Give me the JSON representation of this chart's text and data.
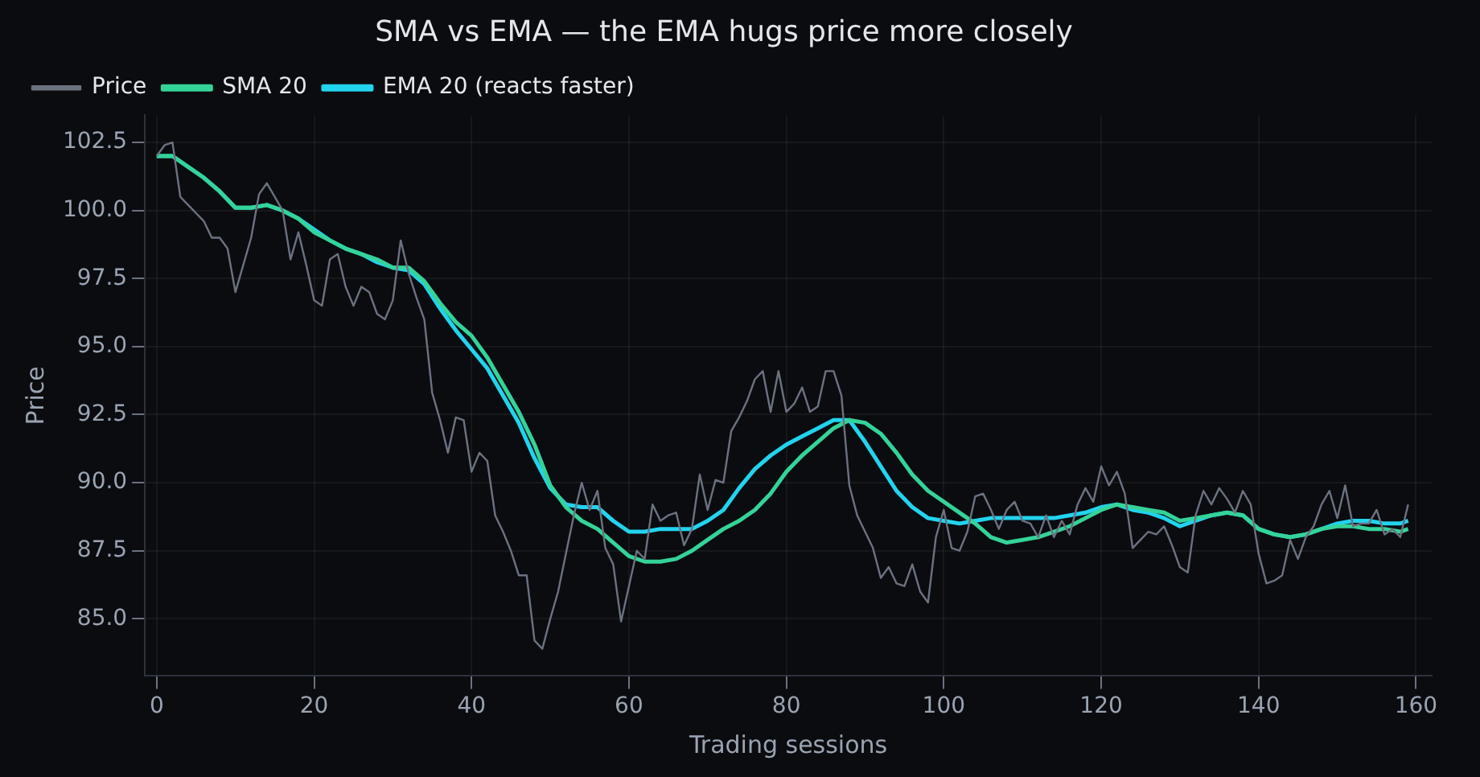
{
  "chart_data": {
    "type": "line",
    "title": "SMA vs EMA — the EMA hugs price more closely",
    "xlabel": "Trading sessions",
    "ylabel": "Price",
    "xlim": [
      -1.5,
      162
    ],
    "ylim": [
      82.9,
      103.5
    ],
    "xticks": [
      0,
      20,
      40,
      60,
      80,
      100,
      120,
      140,
      160
    ],
    "yticks": [
      {
        "value": 85,
        "label": "85.0"
      },
      {
        "value": 87.5,
        "label": "87.5"
      },
      {
        "value": 90,
        "label": "90.0"
      },
      {
        "value": 92.5,
        "label": "92.5"
      },
      {
        "value": 95,
        "label": "95.0"
      },
      {
        "value": 97.5,
        "label": "97.5"
      },
      {
        "value": 100,
        "label": "100.0"
      },
      {
        "value": 102.5,
        "label": "102.5"
      }
    ],
    "grid": true,
    "legend": "top left",
    "marker": "none",
    "series": [
      {
        "name": "Price",
        "color": "#6b7280",
        "x": [
          0,
          1,
          2,
          3,
          4,
          5,
          6,
          7,
          8,
          9,
          10,
          11,
          12,
          13,
          14,
          15,
          16,
          17,
          18,
          19,
          20,
          21,
          22,
          23,
          24,
          25,
          26,
          27,
          28,
          29,
          30,
          31,
          32,
          33,
          34,
          35,
          36,
          37,
          38,
          39,
          40,
          41,
          42,
          43,
          44,
          45,
          46,
          47,
          48,
          49,
          50,
          51,
          52,
          53,
          54,
          55,
          56,
          57,
          58,
          59,
          60,
          61,
          62,
          63,
          64,
          65,
          66,
          67,
          68,
          69,
          70,
          71,
          72,
          73,
          74,
          75,
          76,
          77,
          78,
          79,
          80,
          81,
          82,
          83,
          84,
          85,
          86,
          87,
          88,
          89,
          90,
          91,
          92,
          93,
          94,
          95,
          96,
          97,
          98,
          99,
          100,
          101,
          102,
          103,
          104,
          105,
          106,
          107,
          108,
          109,
          110,
          111,
          112,
          113,
          114,
          115,
          116,
          117,
          118,
          119,
          120,
          121,
          122,
          123,
          124,
          125,
          126,
          127,
          128,
          129,
          130,
          131,
          132,
          133,
          134,
          135,
          136,
          137,
          138,
          139,
          140,
          141,
          142,
          143,
          144,
          145,
          146,
          147,
          148,
          149,
          150,
          151,
          152,
          153,
          154,
          155,
          156,
          157,
          158,
          159
        ],
        "values": [
          102.0,
          102.4,
          102.5,
          100.5,
          100.2,
          99.9,
          99.6,
          99.0,
          99.0,
          98.6,
          97.0,
          98.0,
          99.0,
          100.6,
          101.0,
          100.5,
          100.0,
          98.2,
          99.2,
          98.0,
          96.7,
          96.5,
          98.2,
          98.4,
          97.2,
          96.5,
          97.2,
          97.0,
          96.2,
          96.0,
          96.7,
          98.9,
          97.7,
          96.8,
          96.0,
          93.3,
          92.3,
          91.1,
          92.4,
          92.3,
          90.4,
          91.1,
          90.8,
          88.8,
          88.2,
          87.5,
          86.6,
          86.6,
          84.2,
          83.9,
          85.0,
          86.0,
          87.4,
          88.8,
          90.0,
          89.0,
          89.7,
          87.6,
          87.0,
          84.9,
          86.2,
          87.5,
          87.2,
          89.2,
          88.6,
          88.8,
          88.9,
          87.7,
          88.3,
          90.3,
          89.0,
          90.1,
          90.0,
          91.9,
          92.4,
          93.0,
          93.8,
          94.1,
          92.6,
          94.1,
          92.6,
          92.9,
          93.5,
          92.6,
          92.8,
          94.1,
          94.1,
          93.2,
          89.9,
          88.8,
          88.2,
          87.6,
          86.5,
          86.9,
          86.3,
          86.2,
          87.0,
          86.0,
          85.6,
          88.0,
          89.0,
          87.6,
          87.5,
          88.2,
          89.5,
          89.6,
          89.0,
          88.3,
          89.0,
          89.3,
          88.6,
          88.5,
          88.0,
          88.8,
          88.0,
          88.6,
          88.1,
          89.2,
          89.8,
          89.3,
          90.6,
          89.9,
          90.4,
          89.6,
          87.6,
          87.9,
          88.2,
          88.1,
          88.4,
          87.7,
          86.9,
          86.7,
          88.8,
          89.7,
          89.2,
          89.8,
          89.4,
          88.9,
          89.7,
          89.2,
          87.4,
          86.3,
          86.4,
          86.6,
          87.9,
          87.2,
          88.0,
          88.4,
          89.2,
          89.7,
          88.7,
          89.9,
          88.4,
          88.5,
          88.5,
          89.0,
          88.1,
          88.3,
          88.0,
          89.2
        ]
      },
      {
        "name": "SMA 20",
        "color": "#34d399",
        "x": [
          0,
          2,
          4,
          6,
          8,
          10,
          12,
          14,
          16,
          18,
          20,
          22,
          24,
          26,
          28,
          30,
          32,
          34,
          36,
          38,
          40,
          42,
          44,
          46,
          48,
          50,
          52,
          54,
          56,
          58,
          60,
          62,
          64,
          66,
          68,
          70,
          72,
          74,
          76,
          78,
          80,
          82,
          84,
          86,
          88,
          90,
          92,
          94,
          96,
          98,
          100,
          102,
          104,
          106,
          108,
          110,
          112,
          114,
          116,
          118,
          120,
          122,
          124,
          126,
          128,
          130,
          132,
          134,
          136,
          138,
          140,
          142,
          144,
          146,
          148,
          150,
          152,
          154,
          156,
          158,
          159
        ],
        "values": [
          102.0,
          102.0,
          101.6,
          101.2,
          100.7,
          100.1,
          100.1,
          100.2,
          100.0,
          99.7,
          99.2,
          98.9,
          98.6,
          98.4,
          98.2,
          97.9,
          97.9,
          97.4,
          96.6,
          95.9,
          95.4,
          94.6,
          93.6,
          92.6,
          91.4,
          89.9,
          89.1,
          88.6,
          88.3,
          87.8,
          87.3,
          87.1,
          87.1,
          87.2,
          87.5,
          87.9,
          88.3,
          88.6,
          89.0,
          89.6,
          90.4,
          91.0,
          91.5,
          92.0,
          92.3,
          92.2,
          91.8,
          91.1,
          90.3,
          89.7,
          89.3,
          88.9,
          88.5,
          88.0,
          87.8,
          87.9,
          88.0,
          88.2,
          88.4,
          88.7,
          89.0,
          89.2,
          89.1,
          89.0,
          88.9,
          88.6,
          88.7,
          88.8,
          88.9,
          88.8,
          88.3,
          88.1,
          88.0,
          88.1,
          88.3,
          88.4,
          88.4,
          88.3,
          88.3,
          88.2,
          88.3
        ]
      },
      {
        "name": "EMA 20 (reacts faster)",
        "color": "#22d3ee",
        "x": [
          0,
          2,
          4,
          6,
          8,
          10,
          12,
          14,
          16,
          18,
          20,
          22,
          24,
          26,
          28,
          30,
          32,
          34,
          36,
          38,
          40,
          42,
          44,
          46,
          48,
          50,
          52,
          54,
          56,
          58,
          60,
          62,
          64,
          66,
          68,
          70,
          72,
          74,
          76,
          78,
          80,
          82,
          84,
          86,
          88,
          90,
          92,
          94,
          96,
          98,
          100,
          102,
          104,
          106,
          108,
          110,
          112,
          114,
          116,
          118,
          120,
          122,
          124,
          126,
          128,
          130,
          132,
          134,
          136,
          138,
          140,
          142,
          144,
          146,
          148,
          150,
          152,
          154,
          156,
          158,
          159
        ],
        "values": [
          102.0,
          102.0,
          101.6,
          101.2,
          100.7,
          100.1,
          100.1,
          100.2,
          100.0,
          99.7,
          99.3,
          98.9,
          98.6,
          98.4,
          98.1,
          97.9,
          97.8,
          97.3,
          96.4,
          95.6,
          94.9,
          94.2,
          93.2,
          92.2,
          90.9,
          89.8,
          89.2,
          89.1,
          89.1,
          88.6,
          88.2,
          88.2,
          88.3,
          88.3,
          88.3,
          88.6,
          89.0,
          89.8,
          90.5,
          91.0,
          91.4,
          91.7,
          92.0,
          92.3,
          92.3,
          91.5,
          90.6,
          89.7,
          89.1,
          88.7,
          88.6,
          88.5,
          88.6,
          88.7,
          88.7,
          88.7,
          88.7,
          88.7,
          88.8,
          88.9,
          89.1,
          89.2,
          89.0,
          88.9,
          88.7,
          88.4,
          88.6,
          88.8,
          88.9,
          88.8,
          88.3,
          88.1,
          88.0,
          88.1,
          88.3,
          88.5,
          88.6,
          88.6,
          88.5,
          88.5,
          88.6
        ]
      }
    ]
  }
}
